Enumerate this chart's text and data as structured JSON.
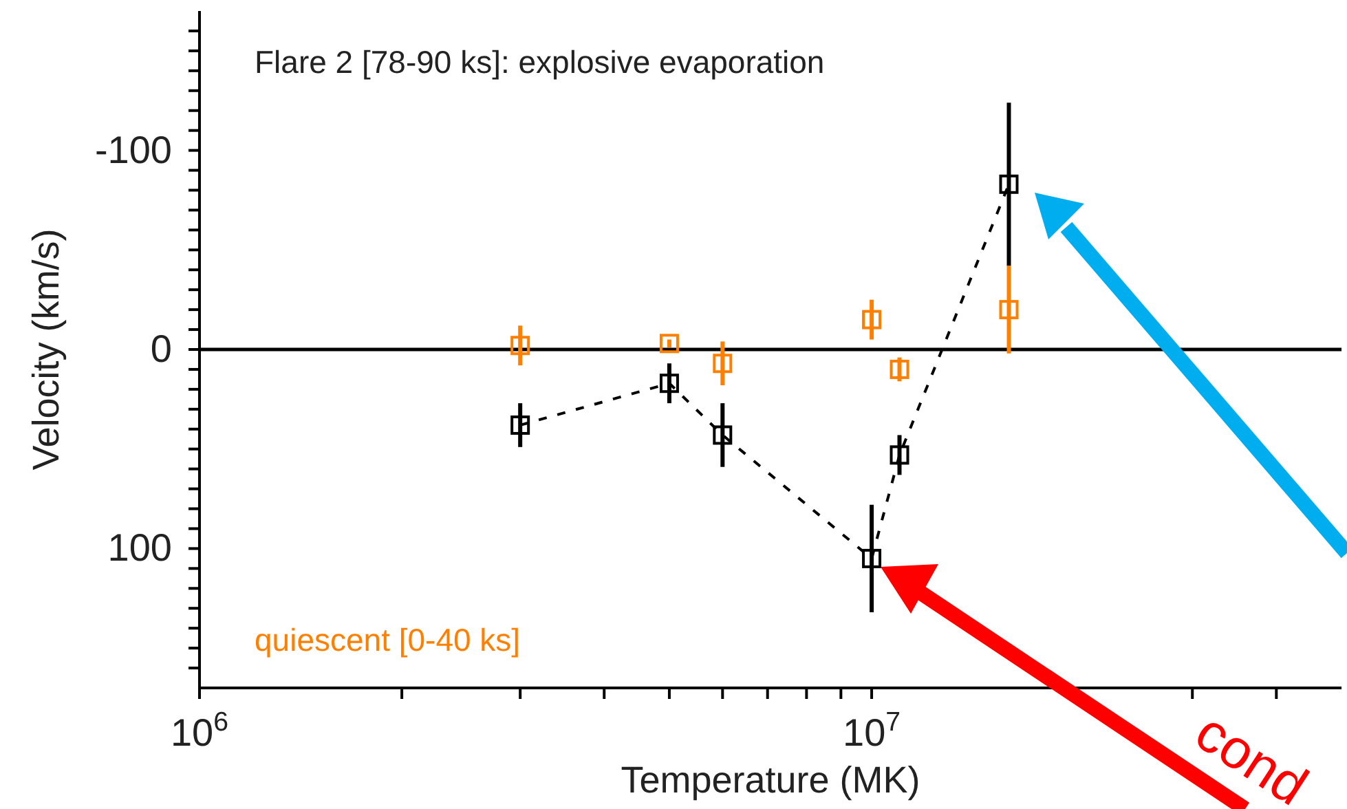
{
  "chart_data": {
    "type": "scatter",
    "xlabel": "Temperature (MK)",
    "ylabel": "Velocity (km/s)",
    "log": "x",
    "xlim": [
      1000000,
      50000000
    ],
    "xticks": [
      {
        "value": 1000000,
        "label": "10$^{6}$"
      },
      {
        "value": 2000000,
        "label": null
      },
      {
        "value": 3000000,
        "label": null
      },
      {
        "value": 4000000,
        "label": null
      },
      {
        "value": 5000000,
        "label": null
      },
      {
        "value": 6000000,
        "label": null
      },
      {
        "value": 7000000,
        "label": null
      },
      {
        "value": 8000000,
        "label": null
      },
      {
        "value": 9000000,
        "label": null
      },
      {
        "value": 10000000,
        "label": "10$^{7}$"
      },
      {
        "value": 20000000,
        "label": null
      },
      {
        "value": 30000000,
        "label": null
      },
      {
        "value": 40000000,
        "label": null
      }
    ],
    "ylim": [
      170,
      -170
    ],
    "yticks": [
      {
        "value": -160,
        "label": null
      },
      {
        "value": -150,
        "label": null
      },
      {
        "value": -140,
        "label": null
      },
      {
        "value": -130,
        "label": null
      },
      {
        "value": -120,
        "label": null
      },
      {
        "value": -110,
        "label": null
      },
      -100,
      {
        "value": -90,
        "label": null
      },
      {
        "value": -80,
        "label": null
      },
      {
        "value": -70,
        "label": null
      },
      {
        "value": -60,
        "label": null
      },
      {
        "value": -50,
        "label": null
      },
      {
        "value": -40,
        "label": null
      },
      {
        "value": -30,
        "label": null
      },
      {
        "value": -20,
        "label": null
      },
      {
        "value": -10,
        "label": null
      },
      0,
      {
        "value": 10,
        "label": null
      },
      {
        "value": 20,
        "label": null
      },
      {
        "value": 30,
        "label": null
      },
      {
        "value": 40,
        "label": null
      },
      {
        "value": 50,
        "label": null
      },
      {
        "value": 60,
        "label": null
      },
      {
        "value": 70,
        "label": null
      },
      {
        "value": 80,
        "label": null
      },
      {
        "value": 90,
        "label": null
      },
      100,
      {
        "value": 110,
        "label": null
      },
      {
        "value": 120,
        "label": null
      },
      {
        "value": 130,
        "label": null
      },
      {
        "value": 140,
        "label": null
      },
      {
        "value": 150,
        "label": null
      },
      {
        "value": 160,
        "label": null
      }
    ],
    "marker": "square",
    "ref_lines": [
      {
        "axis": "y",
        "value": 0,
        "color": "#000000"
      }
    ],
    "annotations": [
      "Flare 2 [78-90 ks]: explosive evaporation",
      "cond"
    ],
    "series": [
      {
        "type": "line",
        "line_style": "dashed",
        "color": "#000000",
        "x": [
          3000000,
          5000000,
          6000000,
          10000000,
          11000000,
          16000000
        ],
        "values": [
          38,
          17,
          43,
          105,
          53,
          -83
        ],
        "errors": [
          11,
          10,
          16,
          27,
          10,
          41
        ]
      },
      {
        "type": "scatter",
        "name": "quiescent [0-40 ks]",
        "color": "#ff8000",
        "x": [
          3000000,
          5000000,
          6000000,
          10000000,
          11000000,
          16000000
        ],
        "values": [
          -2,
          -3,
          7,
          -15,
          10,
          -20
        ],
        "errors": [
          10,
          2,
          11,
          10,
          6,
          22
        ]
      }
    ]
  }
}
